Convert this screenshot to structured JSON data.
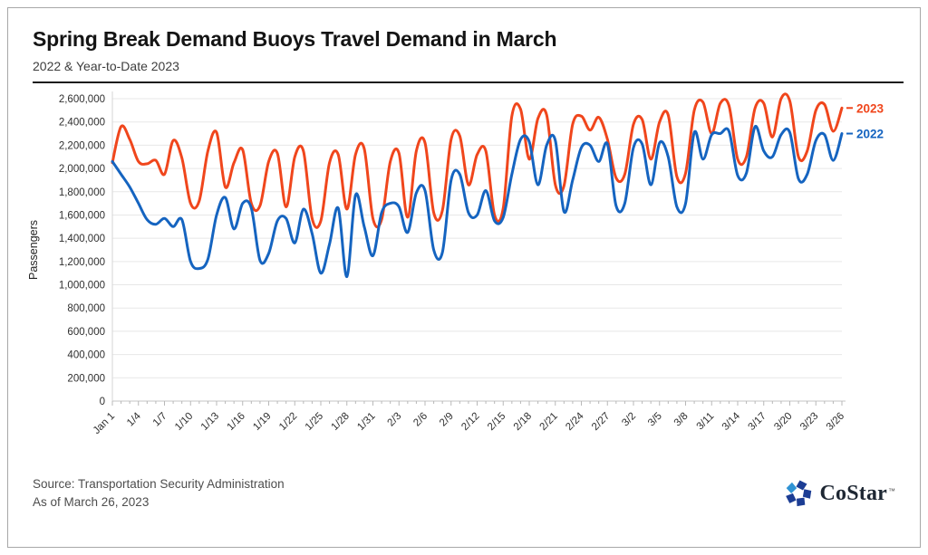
{
  "header": {
    "title": "Spring Break Demand Buoys Travel Demand in March",
    "subtitle": "2022 & Year-to-Date 2023"
  },
  "chart_data": {
    "type": "line",
    "ylabel": "Passengers",
    "xlabel": "",
    "ylim": [
      0,
      2600000
    ],
    "ytick_step": 200000,
    "grid": "horizontal",
    "legend_position": "right-end-labels",
    "y_tick_labels": [
      "0",
      "200,000",
      "400,000",
      "600,000",
      "800,000",
      "1,000,000",
      "1,200,000",
      "1,400,000",
      "1,600,000",
      "1,800,000",
      "2,000,000",
      "2,200,000",
      "2,400,000",
      "2,600,000"
    ],
    "x_tick_labels": [
      "Jan 1",
      "1/4",
      "1/7",
      "1/10",
      "1/13",
      "1/16",
      "1/19",
      "1/22",
      "1/25",
      "1/28",
      "1/31",
      "2/3",
      "2/6",
      "2/9",
      "2/12",
      "2/15",
      "2/18",
      "2/21",
      "2/24",
      "2/27",
      "3/2",
      "3/5",
      "3/8",
      "3/11",
      "3/14",
      "3/17",
      "3/20",
      "3/23",
      "3/26"
    ],
    "x_tick_every_days": 3,
    "days_total": 85,
    "series": [
      {
        "name": "2023",
        "color": "#f0461c",
        "values": [
          2050000,
          2360000,
          2250000,
          2060000,
          2040000,
          2070000,
          1950000,
          2240000,
          2090000,
          1700000,
          1720000,
          2150000,
          2310000,
          1840000,
          2050000,
          2160000,
          1700000,
          1680000,
          2060000,
          2130000,
          1670000,
          2100000,
          2150000,
          1570000,
          1550000,
          2050000,
          2120000,
          1650000,
          2120000,
          2170000,
          1570000,
          1560000,
          2060000,
          2130000,
          1580000,
          2150000,
          2220000,
          1620000,
          1640000,
          2250000,
          2280000,
          1860000,
          2120000,
          2150000,
          1600000,
          1660000,
          2450000,
          2510000,
          2080000,
          2430000,
          2460000,
          1860000,
          1850000,
          2380000,
          2450000,
          2330000,
          2440000,
          2250000,
          1920000,
          1950000,
          2380000,
          2420000,
          2080000,
          2400000,
          2460000,
          1930000,
          1960000,
          2500000,
          2570000,
          2300000,
          2560000,
          2540000,
          2080000,
          2100000,
          2520000,
          2560000,
          2270000,
          2600000,
          2580000,
          2100000,
          2150000,
          2500000,
          2550000,
          2320000,
          2520000
        ]
      },
      {
        "name": "2022",
        "color": "#1564c0",
        "values": [
          2060000,
          1950000,
          1840000,
          1700000,
          1560000,
          1520000,
          1570000,
          1500000,
          1560000,
          1200000,
          1140000,
          1220000,
          1600000,
          1750000,
          1480000,
          1700000,
          1660000,
          1210000,
          1270000,
          1550000,
          1570000,
          1360000,
          1650000,
          1440000,
          1100000,
          1350000,
          1660000,
          1070000,
          1770000,
          1500000,
          1250000,
          1620000,
          1700000,
          1670000,
          1450000,
          1790000,
          1810000,
          1300000,
          1280000,
          1900000,
          1950000,
          1620000,
          1600000,
          1810000,
          1550000,
          1580000,
          1950000,
          2250000,
          2230000,
          1860000,
          2200000,
          2240000,
          1630000,
          1900000,
          2180000,
          2200000,
          2060000,
          2210000,
          1680000,
          1700000,
          2180000,
          2210000,
          1860000,
          2220000,
          2100000,
          1670000,
          1700000,
          2310000,
          2080000,
          2290000,
          2300000,
          2320000,
          1940000,
          1960000,
          2360000,
          2150000,
          2100000,
          2290000,
          2310000,
          1910000,
          1950000,
          2240000,
          2290000,
          2070000,
          2300000
        ]
      }
    ]
  },
  "footer": {
    "source_line1": "Source: Transportation Security Administration",
    "source_line2": "As of March 26, 2023",
    "logo": {
      "text": "CoStar",
      "tm": "™",
      "petal_color": "#1c3d94",
      "petal_accent": "#2f93d4",
      "text_color": "#1e2733"
    }
  }
}
